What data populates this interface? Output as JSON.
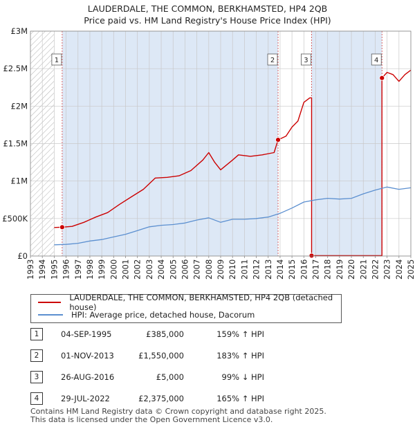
{
  "chart_data": {
    "type": "line",
    "title": "LAUDERDALE, THE COMMON, BERKHAMSTED, HP4 2QB",
    "subtitle": "Price paid vs. HM Land Registry's House Price Index (HPI)",
    "xlim": [
      1993,
      2025
    ],
    "ylim": [
      0,
      3000000
    ],
    "x_ticks": [
      "1993",
      "1994",
      "1995",
      "1996",
      "1997",
      "1998",
      "1999",
      "2000",
      "2001",
      "2002",
      "2003",
      "2004",
      "2005",
      "2006",
      "2007",
      "2008",
      "2009",
      "2010",
      "2011",
      "2012",
      "2013",
      "2014",
      "2015",
      "2016",
      "2017",
      "2018",
      "2019",
      "2020",
      "2021",
      "2022",
      "2023",
      "2024",
      "2025"
    ],
    "y_ticks": [
      {
        "value": 0,
        "label": "£0"
      },
      {
        "value": 500000,
        "label": "£500K"
      },
      {
        "value": 1000000,
        "label": "£1M"
      },
      {
        "value": 1500000,
        "label": "£1.5M"
      },
      {
        "value": 2000000,
        "label": "£2M"
      },
      {
        "value": 2500000,
        "label": "£2.5M"
      },
      {
        "value": 3000000,
        "label": "£3M"
      }
    ],
    "hatch_until": 1995,
    "colors": {
      "property": "#cc0000",
      "hpi": "#5b8fd0",
      "shade": "#dde8f6",
      "grid": "#c8c8c8"
    },
    "series": [
      {
        "name": "LAUDERDALE, THE COMMON, BERKHAMSTED, HP4 2QB (detached house)",
        "key": "property",
        "points": [
          [
            1995.0,
            380000
          ],
          [
            1995.67,
            385000
          ],
          [
            1996.5,
            395000
          ],
          [
            1997.5,
            450000
          ],
          [
            1998.5,
            520000
          ],
          [
            1999.5,
            580000
          ],
          [
            2000.5,
            690000
          ],
          [
            2001.5,
            790000
          ],
          [
            2002.5,
            890000
          ],
          [
            2003.5,
            1040000
          ],
          [
            2004.5,
            1050000
          ],
          [
            2005.5,
            1070000
          ],
          [
            2006.5,
            1140000
          ],
          [
            2007.5,
            1280000
          ],
          [
            2008.0,
            1380000
          ],
          [
            2008.5,
            1250000
          ],
          [
            2009.0,
            1150000
          ],
          [
            2010.0,
            1280000
          ],
          [
            2010.5,
            1350000
          ],
          [
            2011.5,
            1330000
          ],
          [
            2012.5,
            1350000
          ],
          [
            2013.5,
            1380000
          ],
          [
            2013.83,
            1550000
          ],
          [
            2014.5,
            1600000
          ],
          [
            2015.0,
            1720000
          ],
          [
            2015.5,
            1800000
          ],
          [
            2016.0,
            2050000
          ],
          [
            2016.5,
            2110000
          ],
          [
            2016.65,
            2110000
          ],
          [
            2016.65,
            5000
          ],
          [
            2019.0,
            5000
          ],
          [
            2022.57,
            5000
          ],
          [
            2022.57,
            2375000
          ],
          [
            2023.0,
            2450000
          ],
          [
            2023.5,
            2420000
          ],
          [
            2024.0,
            2330000
          ],
          [
            2024.5,
            2420000
          ],
          [
            2025.0,
            2480000
          ]
        ]
      },
      {
        "name": "HPI: Average price, detached house, Dacorum",
        "key": "hpi",
        "points": [
          [
            1995.0,
            150000
          ],
          [
            1996.0,
            155000
          ],
          [
            1997.0,
            170000
          ],
          [
            1998.0,
            200000
          ],
          [
            1999.0,
            220000
          ],
          [
            2000.0,
            255000
          ],
          [
            2001.0,
            290000
          ],
          [
            2002.0,
            340000
          ],
          [
            2003.0,
            390000
          ],
          [
            2004.0,
            410000
          ],
          [
            2005.0,
            420000
          ],
          [
            2006.0,
            440000
          ],
          [
            2007.0,
            480000
          ],
          [
            2008.0,
            510000
          ],
          [
            2009.0,
            450000
          ],
          [
            2010.0,
            490000
          ],
          [
            2011.0,
            490000
          ],
          [
            2012.0,
            500000
          ],
          [
            2013.0,
            520000
          ],
          [
            2014.0,
            570000
          ],
          [
            2015.0,
            640000
          ],
          [
            2016.0,
            720000
          ],
          [
            2017.0,
            750000
          ],
          [
            2018.0,
            770000
          ],
          [
            2019.0,
            760000
          ],
          [
            2020.0,
            770000
          ],
          [
            2021.0,
            830000
          ],
          [
            2022.0,
            880000
          ],
          [
            2023.0,
            920000
          ],
          [
            2024.0,
            890000
          ],
          [
            2025.0,
            910000
          ]
        ]
      }
    ],
    "markers": [
      {
        "id": "1",
        "x": 1995.67,
        "y": 385000
      },
      {
        "id": "2",
        "x": 2013.83,
        "y": 1550000
      },
      {
        "id": "3",
        "x": 2016.65,
        "y": 5000
      },
      {
        "id": "4",
        "x": 2022.57,
        "y": 2375000
      }
    ]
  },
  "legend": {
    "property_label": "LAUDERDALE, THE COMMON, BERKHAMSTED, HP4 2QB (detached house)",
    "hpi_label": "HPI: Average price, detached house, Dacorum"
  },
  "transactions": [
    {
      "id": "1",
      "date": "04-SEP-1995",
      "price": "£385,000",
      "hpi": "159% ↑ HPI"
    },
    {
      "id": "2",
      "date": "01-NOV-2013",
      "price": "£1,550,000",
      "hpi": "183% ↑ HPI"
    },
    {
      "id": "3",
      "date": "26-AUG-2016",
      "price": "£5,000",
      "hpi": "99% ↓ HPI"
    },
    {
      "id": "4",
      "date": "29-JUL-2022",
      "price": "£2,375,000",
      "hpi": "165% ↑ HPI"
    }
  ],
  "footer": {
    "line1": "Contains HM Land Registry data © Crown copyright and database right 2025.",
    "line2": "This data is licensed under the Open Government Licence v3.0."
  }
}
